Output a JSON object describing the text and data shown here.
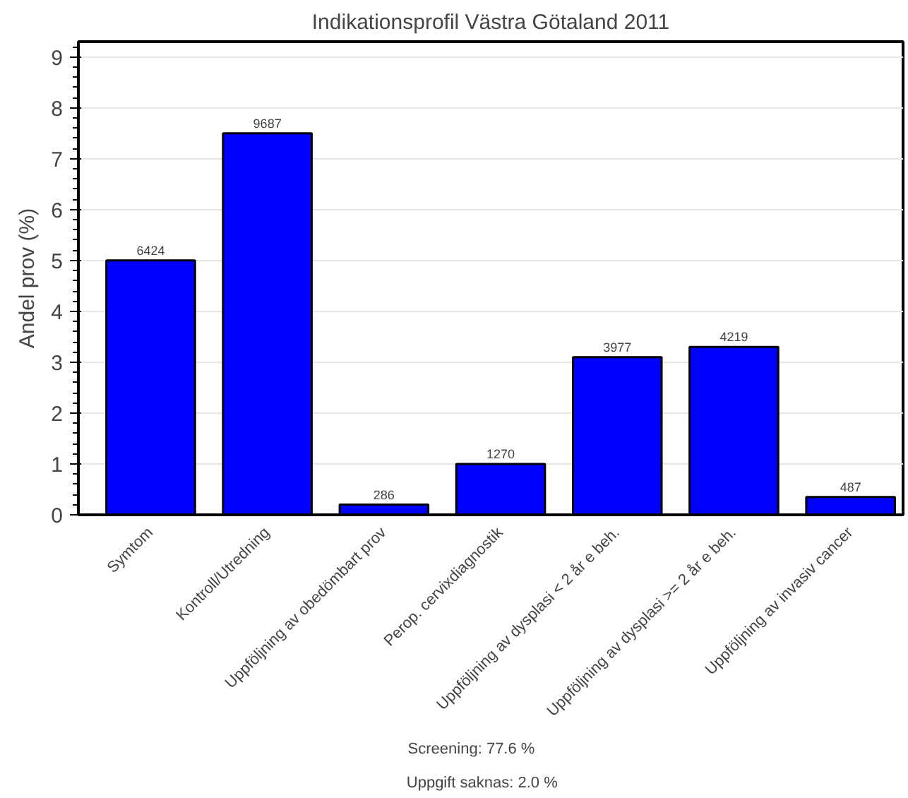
{
  "chart_data": {
    "type": "bar",
    "title": "Indikationsprofil Västra Götaland 2011",
    "ylabel": "Andel prov (%)",
    "categories": [
      "Symtom",
      "Kontroll/Utredning",
      "Uppföljning av obedömbart prov",
      "Perop. cervixdiagnostik",
      "Uppföljning av dysplasi < 2 år e beh.",
      "Uppföljning av dysplasi >= 2 år e beh.",
      "Uppföljning av invasiv cancer"
    ],
    "values": [
      5.0,
      7.5,
      0.2,
      1.0,
      3.1,
      3.3,
      0.35
    ],
    "color": "#0000ff",
    "ylim": [
      0,
      9.3
    ],
    "yticks": [
      0,
      1,
      2,
      3,
      4,
      5,
      6,
      7,
      8,
      9
    ],
    "grid": "y",
    "annotations": [
      {
        "text": "6424",
        "x": "Symtom",
        "y": 5.0
      },
      {
        "text": "9687",
        "x": "Kontroll/Utredning",
        "y": 7.5
      },
      {
        "text": "286",
        "x": "Uppföljning av obedömbart prov",
        "y": 0.2
      },
      {
        "text": "1270",
        "x": "Perop. cervixdiagnostik",
        "y": 1.0
      },
      {
        "text": "3977",
        "x": "Uppföljning av dysplasi < 2 år e beh.",
        "y": 3.1
      },
      {
        "text": "4219",
        "x": "Uppföljning av dysplasi >= 2 år e beh.",
        "y": 3.3
      },
      {
        "text": "487",
        "x": "Uppföljning av invasiv cancer",
        "y": 0.35
      },
      "Screening:          77.6 %",
      "Uppgift saknas:     2.0 %"
    ]
  }
}
